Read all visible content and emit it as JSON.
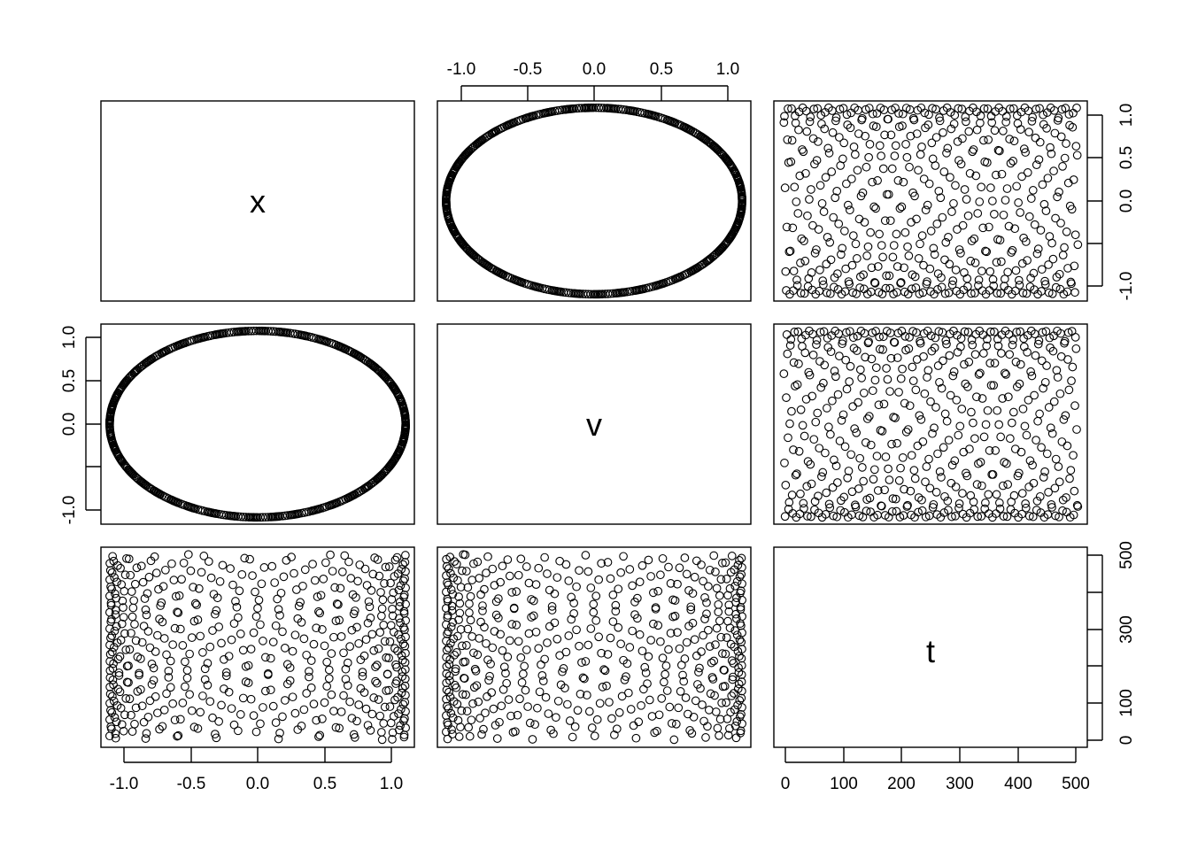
{
  "chart_data": {
    "type": "scatter",
    "kind": "pairs",
    "title": "",
    "variables": [
      "x",
      "v",
      "t"
    ],
    "ranges": {
      "x": [
        -1.05,
        1.05
      ],
      "v": [
        -1.05,
        1.05
      ],
      "t": [
        0,
        500
      ]
    },
    "ticks": {
      "x": [
        -1.0,
        -0.5,
        0.0,
        0.5,
        1.0
      ],
      "v": [
        -1.0,
        -0.5,
        0.0,
        0.5,
        1.0
      ],
      "t": [
        0,
        100,
        200,
        300,
        400,
        500
      ]
    },
    "tick_labels": {
      "top_v": [
        "-1.0",
        "-0.5",
        "0.0",
        "0.5",
        "1.0"
      ],
      "right_v": [
        "1.0",
        "0.5",
        "0.0",
        "",
        "-1.0"
      ],
      "left_x": [
        "1.0",
        "0.5",
        "0.0",
        "",
        "-1.0"
      ],
      "bottom_x": [
        "-1.0",
        "-0.5",
        "0.0",
        "0.5",
        "1.0"
      ],
      "right_t": [
        "500",
        "",
        "300",
        "",
        "100",
        "0"
      ],
      "bottom_t": [
        "0",
        "100",
        "200",
        "300",
        "400",
        "500"
      ]
    },
    "series_generator": {
      "n_points": 500,
      "t": [
        1,
        500
      ],
      "x": "sin(t)",
      "v": "cos(t)"
    },
    "marker": "open-circle",
    "grid": false,
    "legend": "none"
  }
}
